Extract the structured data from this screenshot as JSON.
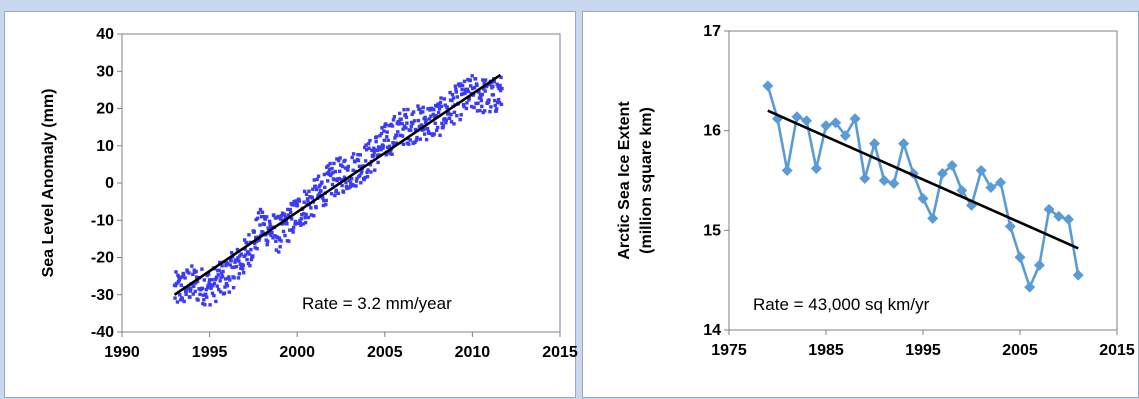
{
  "chart_data": [
    {
      "type": "scatter",
      "ylabel": "Sea Level  Anomaly (mm)",
      "annotation": "Rate = 3.2 mm/year",
      "xlim": [
        1990,
        2015
      ],
      "ylim": [
        -40,
        40
      ],
      "xticks": [
        1990,
        1995,
        2000,
        2005,
        2010,
        2015
      ],
      "yticks": [
        -40,
        -30,
        -20,
        -10,
        0,
        10,
        20,
        30,
        40
      ],
      "marker_color": "#3b3bf5",
      "trend_color": "#000000",
      "trend": {
        "x": [
          1993.0,
          2011.6
        ],
        "y": [
          -30.0,
          29.0
        ],
        "rate_per_year": 3.2
      },
      "sampling": {
        "start": 1993.0,
        "end": 2011.7,
        "step": 0.0274
      },
      "anchors": {
        "x": [
          1993.0,
          1994.0,
          1995.0,
          1996.0,
          1997.0,
          1998.0,
          1999.0,
          2000.0,
          2001.0,
          2002.0,
          2003.0,
          2004.0,
          2005.0,
          2006.0,
          2007.0,
          2008.0,
          2009.0,
          2010.0,
          2011.0,
          2011.7
        ],
        "y": [
          -29,
          -27,
          -28,
          -25,
          -20,
          -11,
          -14,
          -8,
          -4,
          1,
          3,
          6,
          11,
          15,
          16,
          17,
          21,
          24,
          23,
          24
        ]
      },
      "spread": 5,
      "grid": false
    },
    {
      "type": "line",
      "ylabel": "Arctic Sea Ice Extent",
      "ylabel2": "(million  square  km)",
      "annotation": "Rate = 43,000 sq km/yr",
      "xlim": [
        1975,
        2015
      ],
      "ylim": [
        14,
        17
      ],
      "xticks": [
        1975,
        1985,
        1995,
        2005,
        2015
      ],
      "yticks": [
        14,
        15,
        16,
        17
      ],
      "line_color": "#5b9bd5",
      "trend_color": "#000000",
      "x": [
        1979,
        1980,
        1981,
        1982,
        1983,
        1984,
        1985,
        1986,
        1987,
        1988,
        1989,
        1990,
        1991,
        1992,
        1993,
        1994,
        1995,
        1996,
        1997,
        1998,
        1999,
        2000,
        2001,
        2002,
        2003,
        2004,
        2005,
        2006,
        2007,
        2008,
        2009,
        2010,
        2011
      ],
      "y": [
        16.45,
        16.12,
        15.6,
        16.14,
        16.1,
        15.62,
        16.05,
        16.08,
        15.95,
        16.12,
        15.52,
        15.87,
        15.5,
        15.47,
        15.87,
        15.57,
        15.32,
        15.12,
        15.57,
        15.65,
        15.4,
        15.25,
        15.6,
        15.43,
        15.48,
        15.04,
        14.73,
        14.43,
        14.65,
        15.21,
        15.14,
        15.11,
        14.55
      ],
      "trend": {
        "x": [
          1979,
          2011
        ],
        "y": [
          16.2,
          14.82
        ]
      },
      "grid": false
    }
  ]
}
